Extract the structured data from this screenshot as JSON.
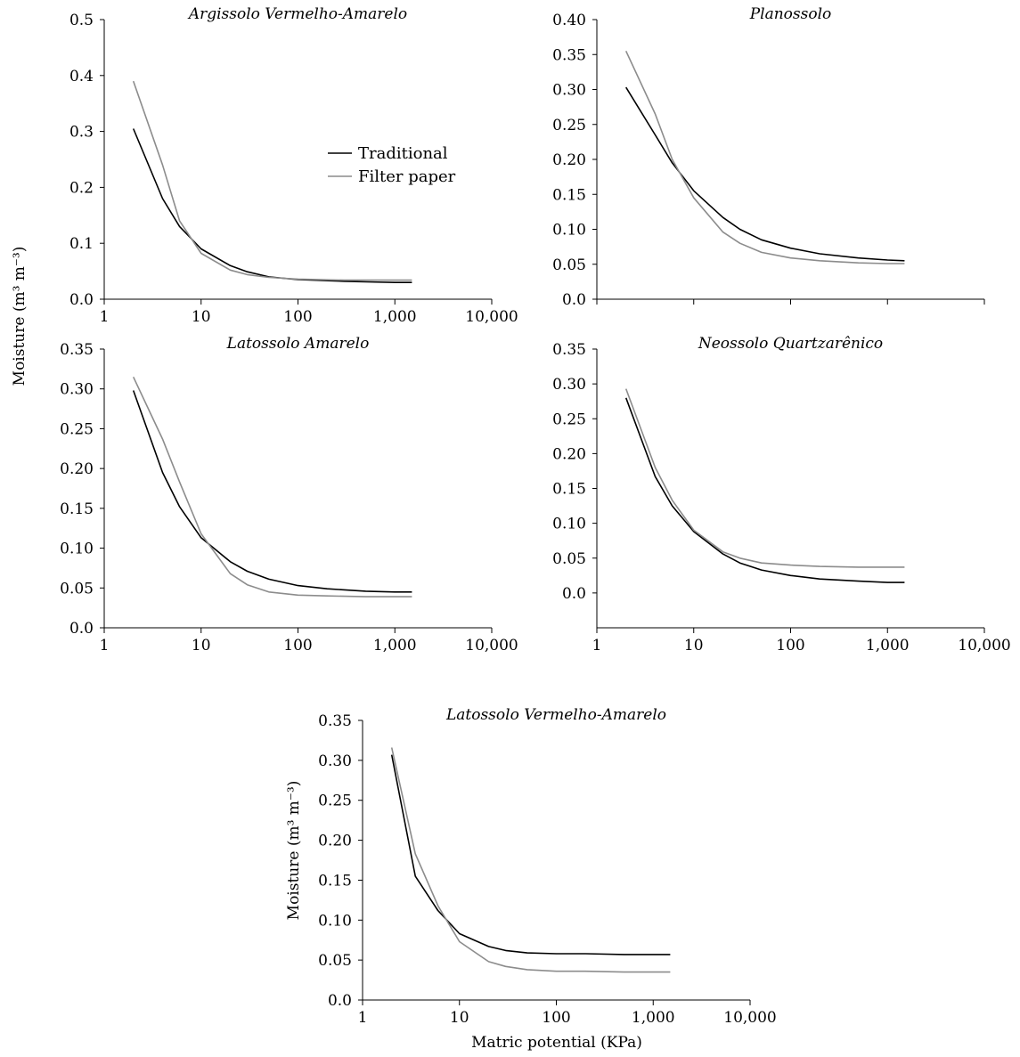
{
  "colors": {
    "traditional": "#000000",
    "filter_paper": "#8c8c8c",
    "axis": "#000000"
  },
  "labels": {
    "ylabel": "Moisture (m³ m⁻³)",
    "xlabel": "Matric potential (KPa)"
  },
  "legend": {
    "placement": "inside first panel, upper-middle",
    "items": [
      "Traditional",
      "Filter paper"
    ]
  },
  "chart_data": [
    {
      "type": "line",
      "title": "Argissolo Vermelho-Amarelo",
      "x_scale": "log",
      "xlim": [
        1,
        10000
      ],
      "x_ticks": [
        "1",
        "10",
        "100",
        "1,000",
        "10,000"
      ],
      "ylim": [
        0,
        0.5
      ],
      "y_ticks": [
        "0.0",
        "0.1",
        "0.2",
        "0.3",
        "0.4",
        "0.5"
      ],
      "x": [
        2,
        4,
        6,
        10,
        20,
        30,
        50,
        100,
        300,
        500,
        1000,
        1500
      ],
      "series": [
        {
          "name": "Traditional",
          "values": [
            0.305,
            0.18,
            0.13,
            0.09,
            0.06,
            0.049,
            0.04,
            0.035,
            0.032,
            0.031,
            0.03,
            0.03
          ]
        },
        {
          "name": "Filter paper",
          "values": [
            0.39,
            0.24,
            0.14,
            0.082,
            0.052,
            0.044,
            0.039,
            0.036,
            0.034,
            0.034,
            0.034,
            0.034
          ]
        }
      ]
    },
    {
      "type": "line",
      "title": "Planossolo",
      "x_scale": "log",
      "xlim": [
        1,
        10000
      ],
      "x_ticks": [],
      "ylim": [
        0,
        0.4
      ],
      "y_ticks": [
        "0.0",
        "0.05",
        "0.10",
        "0.15",
        "0.20",
        "0.25",
        "0.30",
        "0.35",
        "0.40"
      ],
      "x": [
        2,
        4,
        6,
        10,
        20,
        30,
        50,
        100,
        200,
        500,
        1000,
        1500
      ],
      "series": [
        {
          "name": "Traditional",
          "values": [
            0.303,
            0.235,
            0.195,
            0.155,
            0.117,
            0.1,
            0.085,
            0.073,
            0.065,
            0.059,
            0.056,
            0.055
          ]
        },
        {
          "name": "Filter paper",
          "values": [
            0.355,
            0.265,
            0.2,
            0.145,
            0.096,
            0.08,
            0.067,
            0.059,
            0.055,
            0.052,
            0.051,
            0.051
          ]
        }
      ]
    },
    {
      "type": "line",
      "title": "Latossolo Amarelo",
      "x_scale": "log",
      "xlim": [
        1,
        10000
      ],
      "x_ticks": [
        "1",
        "10",
        "100",
        "1,000",
        "10,000"
      ],
      "ylim": [
        0,
        0.35
      ],
      "y_ticks": [
        "0.0",
        "0.05",
        "0.10",
        "0.15",
        "0.20",
        "0.25",
        "0.30",
        "0.35"
      ],
      "x": [
        2,
        4,
        6,
        10,
        20,
        30,
        50,
        100,
        200,
        500,
        1000,
        1500
      ],
      "series": [
        {
          "name": "Traditional",
          "values": [
            0.298,
            0.195,
            0.152,
            0.113,
            0.083,
            0.071,
            0.061,
            0.053,
            0.049,
            0.046,
            0.045,
            0.045
          ]
        },
        {
          "name": "Filter paper",
          "values": [
            0.315,
            0.237,
            0.183,
            0.118,
            0.068,
            0.054,
            0.045,
            0.041,
            0.04,
            0.039,
            0.039,
            0.039
          ]
        }
      ]
    },
    {
      "type": "line",
      "title": "Neossolo Quartzarênico",
      "x_scale": "log",
      "xlim": [
        1,
        10000
      ],
      "x_ticks": [
        "1",
        "10",
        "100",
        "1,000",
        "10,000"
      ],
      "ylim": [
        -0.05,
        0.35
      ],
      "y_ticks": [
        "0.0",
        "0.05",
        "0.10",
        "0.15",
        "0.20",
        "0.25",
        "0.30",
        "0.35"
      ],
      "x": [
        2,
        4,
        6,
        10,
        20,
        30,
        50,
        100,
        200,
        500,
        1000,
        1500
      ],
      "series": [
        {
          "name": "Traditional",
          "values": [
            0.28,
            0.167,
            0.125,
            0.088,
            0.056,
            0.043,
            0.033,
            0.025,
            0.02,
            0.017,
            0.015,
            0.015
          ]
        },
        {
          "name": "Filter paper",
          "values": [
            0.293,
            0.18,
            0.133,
            0.09,
            0.059,
            0.05,
            0.043,
            0.04,
            0.038,
            0.037,
            0.037,
            0.037
          ]
        }
      ]
    },
    {
      "type": "line",
      "title": "Latossolo Vermelho-Amarelo",
      "x_scale": "log",
      "xlim": [
        1,
        10000
      ],
      "x_ticks": [
        "1",
        "10",
        "100",
        "1,000",
        "10,000"
      ],
      "ylim": [
        0,
        0.35
      ],
      "y_ticks": [
        "0.0",
        "0.05",
        "0.10",
        "0.15",
        "0.20",
        "0.25",
        "0.30",
        "0.35"
      ],
      "x": [
        2,
        3.5,
        6,
        10,
        20,
        30,
        50,
        100,
        200,
        500,
        1000,
        1500
      ],
      "series": [
        {
          "name": "Traditional",
          "values": [
            0.307,
            0.155,
            0.112,
            0.083,
            0.067,
            0.062,
            0.059,
            0.058,
            0.058,
            0.057,
            0.057,
            0.057
          ]
        },
        {
          "name": "Filter paper",
          "values": [
            0.316,
            0.183,
            0.118,
            0.073,
            0.048,
            0.042,
            0.038,
            0.036,
            0.036,
            0.035,
            0.035,
            0.035
          ]
        }
      ]
    }
  ]
}
